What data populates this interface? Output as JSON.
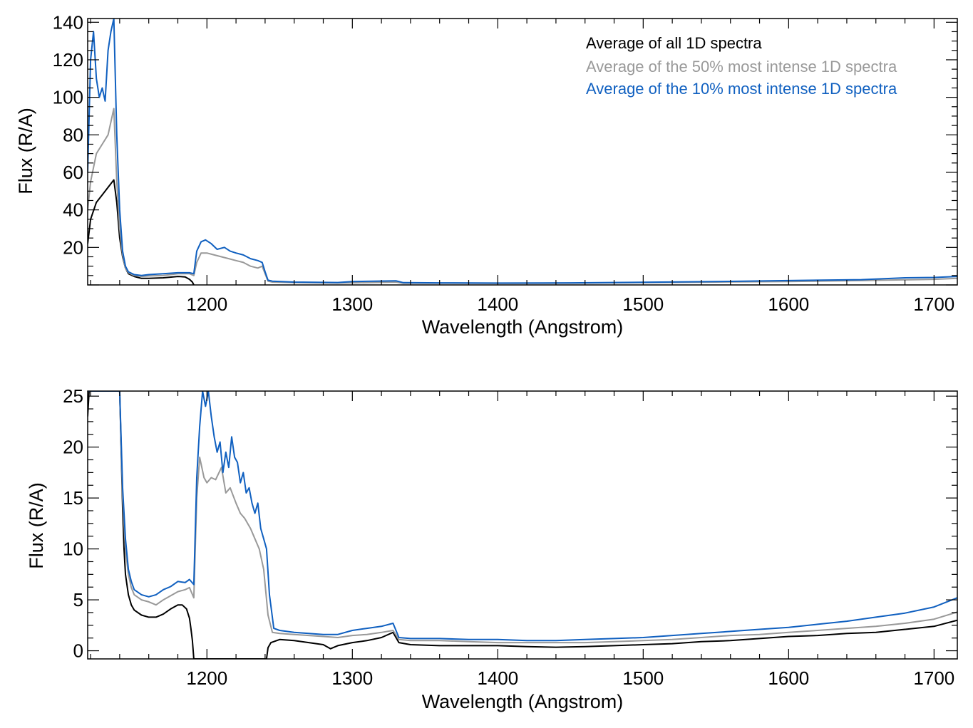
{
  "colors": {
    "all": "#000000",
    "p50": "#999999",
    "p10": "#1060C0",
    "axis": "#000000"
  },
  "legend": [
    {
      "label": "Average of all 1D spectra",
      "color": "#000000"
    },
    {
      "label": "Average of the 50% most intense 1D spectra",
      "color": "#999999"
    },
    {
      "label": "Average of the 10% most intense 1D spectra",
      "color": "#1060C0"
    }
  ],
  "chart_data": [
    {
      "type": "line",
      "xlabel": "Wavelength (Angstrom)",
      "ylabel": "Flux (R/A)",
      "xlim": [
        1118,
        1716
      ],
      "ylim": [
        0,
        142
      ],
      "xticks": [
        1200,
        1300,
        1400,
        1500,
        1600,
        1700
      ],
      "yticks": [
        20,
        40,
        60,
        80,
        100,
        120,
        140
      ],
      "legend_position": "top-right",
      "series": [
        {
          "name": "Average of all 1D spectra",
          "color": "#000000",
          "x": [
            1118,
            1120,
            1124,
            1128,
            1132,
            1136,
            1138,
            1140,
            1142,
            1144,
            1146,
            1150,
            1155,
            1160,
            1170,
            1180,
            1185,
            1188,
            1190,
            1191
          ],
          "y": [
            22,
            35,
            44,
            48,
            52,
            56,
            44,
            25,
            15,
            9,
            6,
            4.5,
            3.5,
            3.5,
            3.8,
            4.5,
            4.3,
            3,
            1.5,
            0
          ]
        },
        {
          "name": "Average of the 50% most intense 1D spectra",
          "color": "#999999",
          "x": [
            1118,
            1120,
            1124,
            1128,
            1132,
            1136,
            1138,
            1140,
            1142,
            1144,
            1146,
            1150,
            1155,
            1160,
            1170,
            1180,
            1188,
            1191,
            1193,
            1196,
            1200,
            1205,
            1210,
            1215,
            1220,
            1225,
            1230,
            1235,
            1238,
            1240,
            1242,
            1245,
            1260,
            1290,
            1330,
            1335,
            1360,
            1400,
            1450,
            1500,
            1550,
            1600,
            1650,
            1700,
            1716
          ],
          "y": [
            40,
            55,
            70,
            75,
            80,
            94,
            55,
            30,
            16,
            9,
            6.5,
            5,
            4.5,
            4.8,
            5,
            6,
            6,
            5,
            12,
            17,
            17,
            16,
            15,
            14,
            13,
            12,
            10,
            9,
            10,
            6,
            2,
            1.5,
            1.3,
            1,
            1.5,
            0.9,
            0.9,
            0.8,
            0.9,
            1.2,
            1.5,
            1.8,
            2.3,
            3,
            3.5
          ]
        },
        {
          "name": "Average of the 10% most intense 1D spectra",
          "color": "#1060C0",
          "x": [
            1118,
            1120,
            1122,
            1124,
            1126,
            1128,
            1130,
            1132,
            1134,
            1136,
            1138,
            1140,
            1142,
            1144,
            1146,
            1150,
            1155,
            1160,
            1170,
            1180,
            1188,
            1191,
            1193,
            1196,
            1199,
            1203,
            1207,
            1212,
            1216,
            1220,
            1225,
            1230,
            1235,
            1238,
            1240,
            1242,
            1245,
            1260,
            1290,
            1300,
            1330,
            1335,
            1360,
            1400,
            1450,
            1500,
            1550,
            1600,
            1650,
            1680,
            1700,
            1716
          ],
          "y": [
            60,
            120,
            135,
            110,
            100,
            105,
            98,
            125,
            135,
            142,
            80,
            40,
            18,
            10,
            7,
            5.5,
            5,
            5.5,
            6,
            6.5,
            6.5,
            6,
            18,
            23,
            24,
            22,
            19,
            20,
            18,
            17,
            16,
            14,
            13,
            12,
            7,
            2.5,
            2,
            1.5,
            1.3,
            1.8,
            2.2,
            1.2,
            1.1,
            1,
            1.1,
            1.4,
            1.8,
            2.3,
            2.8,
            3.8,
            4,
            4.5
          ]
        }
      ]
    },
    {
      "type": "line",
      "xlabel": "Wavelength (Angstrom)",
      "ylabel": "Flux (R/A)",
      "xlim": [
        1118,
        1716
      ],
      "ylim": [
        -0.8,
        25.5
      ],
      "xticks": [
        1200,
        1300,
        1400,
        1500,
        1600,
        1700
      ],
      "yticks": [
        0,
        5,
        10,
        15,
        20,
        25
      ],
      "series": [
        {
          "name": "Average of all 1D spectra",
          "color": "#000000",
          "x": [
            1118,
            1119,
            1120,
            1140,
            1141,
            1142,
            1143,
            1144,
            1146,
            1148,
            1150,
            1155,
            1160,
            1165,
            1170,
            1175,
            1180,
            1183,
            1186,
            1188,
            1189,
            1190,
            1191,
            1241,
            1242,
            1244,
            1250,
            1260,
            1270,
            1280,
            1285,
            1290,
            1300,
            1310,
            1320,
            1328,
            1332,
            1340,
            1360,
            1380,
            1400,
            1420,
            1440,
            1460,
            1480,
            1500,
            1520,
            1540,
            1560,
            1580,
            1600,
            1620,
            1640,
            1660,
            1680,
            1700,
            1716
          ],
          "y": [
            23,
            25.5,
            25.5,
            25.5,
            20,
            14,
            10,
            7.5,
            5.5,
            4.5,
            4,
            3.5,
            3.3,
            3.3,
            3.6,
            4.1,
            4.5,
            4.5,
            4.1,
            3.2,
            2.2,
            1,
            -0.8,
            -0.8,
            0.3,
            0.8,
            1.1,
            1,
            0.8,
            0.6,
            0.2,
            0.5,
            0.8,
            1,
            1.3,
            1.8,
            0.8,
            0.6,
            0.5,
            0.5,
            0.5,
            0.4,
            0.35,
            0.4,
            0.5,
            0.6,
            0.7,
            0.9,
            1,
            1.2,
            1.4,
            1.5,
            1.7,
            1.8,
            2.1,
            2.4,
            3
          ]
        },
        {
          "name": "Average of the 50% most intense 1D spectra",
          "color": "#999999",
          "x": [
            1118,
            1120,
            1140,
            1142,
            1144,
            1146,
            1148,
            1150,
            1155,
            1160,
            1165,
            1170,
            1175,
            1180,
            1185,
            1188,
            1191,
            1193,
            1195,
            1198,
            1200,
            1203,
            1206,
            1210,
            1213,
            1216,
            1220,
            1223,
            1226,
            1230,
            1233,
            1236,
            1239,
            1242,
            1245,
            1250,
            1260,
            1270,
            1280,
            1290,
            1300,
            1310,
            1320,
            1328,
            1332,
            1340,
            1360,
            1380,
            1400,
            1420,
            1440,
            1460,
            1480,
            1500,
            1520,
            1540,
            1560,
            1580,
            1600,
            1620,
            1640,
            1660,
            1680,
            1700,
            1716
          ],
          "y": [
            25.5,
            25.5,
            25.5,
            15,
            10,
            7.5,
            6.2,
            5.5,
            5,
            4.8,
            4.5,
            5,
            5.4,
            5.8,
            6,
            6.2,
            5.2,
            15,
            19,
            17,
            16.5,
            17,
            16.8,
            18,
            15.5,
            16,
            14.5,
            13.5,
            13,
            12,
            11,
            10,
            8,
            3.5,
            1.8,
            1.7,
            1.6,
            1.5,
            1.4,
            1.3,
            1.5,
            1.6,
            1.8,
            2,
            1.1,
            1,
            1,
            0.9,
            0.8,
            0.8,
            0.8,
            0.8,
            0.9,
            1,
            1.1,
            1.3,
            1.5,
            1.6,
            1.8,
            2,
            2.2,
            2.4,
            2.7,
            3.1,
            3.8
          ]
        },
        {
          "name": "Average of the 10% most intense 1D spectra",
          "color": "#1060C0",
          "x": [
            1118,
            1120,
            1140,
            1142,
            1144,
            1146,
            1148,
            1150,
            1155,
            1160,
            1165,
            1170,
            1175,
            1180,
            1185,
            1188,
            1191,
            1193,
            1195,
            1197,
            1199,
            1201,
            1203,
            1205,
            1207,
            1209,
            1211,
            1213,
            1215,
            1217,
            1219,
            1221,
            1223,
            1225,
            1227,
            1229,
            1231,
            1233,
            1235,
            1237,
            1239,
            1241,
            1243,
            1246,
            1250,
            1260,
            1270,
            1280,
            1290,
            1300,
            1310,
            1320,
            1328,
            1332,
            1340,
            1360,
            1380,
            1400,
            1420,
            1440,
            1460,
            1480,
            1500,
            1520,
            1540,
            1560,
            1580,
            1600,
            1620,
            1640,
            1660,
            1680,
            1700,
            1716
          ],
          "y": [
            25.5,
            25.5,
            25.5,
            16,
            11,
            8,
            6.8,
            6,
            5.5,
            5.3,
            5.5,
            6,
            6.3,
            6.8,
            6.7,
            7,
            6.5,
            17,
            22,
            25.5,
            24,
            25.5,
            23,
            21,
            19.5,
            20.5,
            17.5,
            19.5,
            18,
            21,
            19,
            18.5,
            16.5,
            17.5,
            15.5,
            16,
            14.5,
            13.5,
            14.5,
            12,
            11,
            10,
            5.5,
            2.2,
            2,
            1.8,
            1.7,
            1.6,
            1.6,
            2,
            2.2,
            2.4,
            2.7,
            1.3,
            1.2,
            1.2,
            1.1,
            1.1,
            1,
            1,
            1.1,
            1.2,
            1.3,
            1.5,
            1.7,
            1.9,
            2.1,
            2.3,
            2.6,
            2.9,
            3.3,
            3.7,
            4.3,
            5.2
          ]
        }
      ]
    }
  ]
}
